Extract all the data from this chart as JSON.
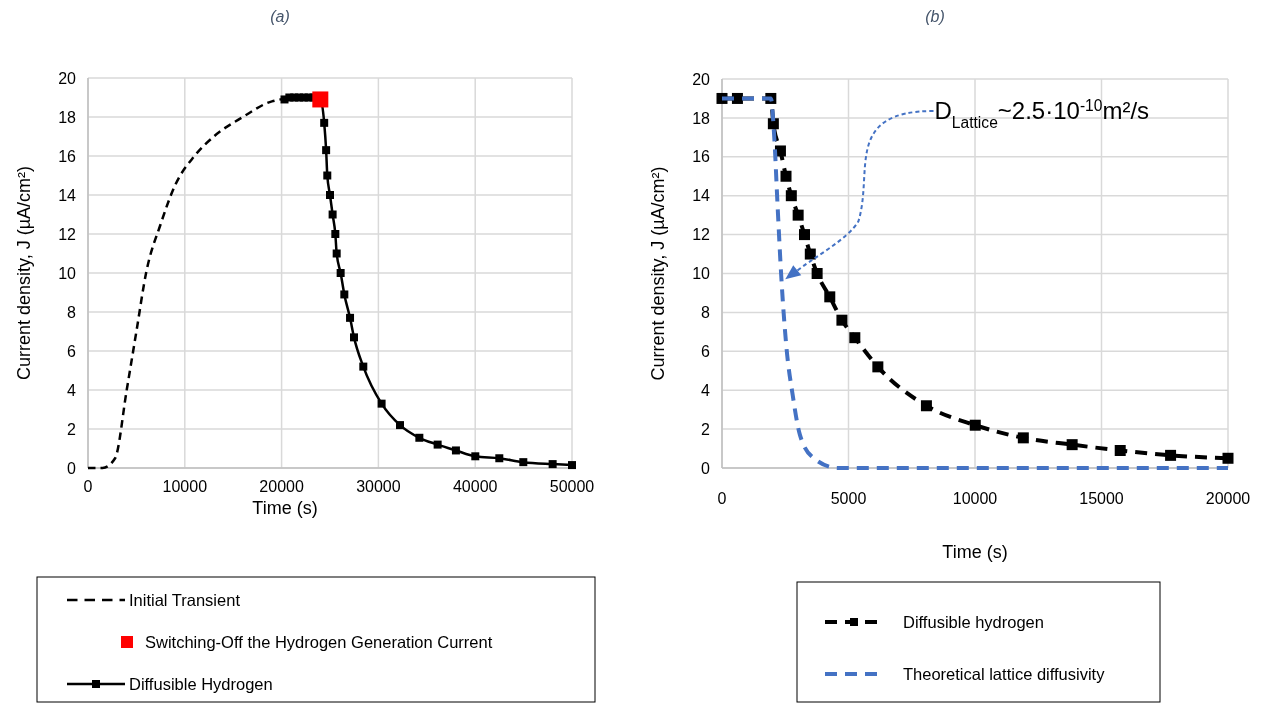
{
  "chart_data": [
    {
      "type": "line",
      "title": "(a)",
      "xlabel": "Time (s)",
      "ylabel": "Current density, J (µA/cm²)",
      "xlim": [
        0,
        50000
      ],
      "ylim": [
        0,
        20
      ],
      "xticks": [
        0,
        10000,
        20000,
        30000,
        40000,
        50000
      ],
      "yticks": [
        0,
        2,
        4,
        6,
        8,
        10,
        12,
        14,
        16,
        18,
        20
      ],
      "grid": true,
      "legend": "bottom",
      "series": [
        {
          "name": "Initial Transient",
          "color": "#000000",
          "line_style": "dashed",
          "marker": "none",
          "x": [
            0,
            1500,
            2800,
            4000,
            5000,
            6000,
            7500,
            9000,
            11000,
            13000,
            16000,
            19000,
            22000,
            24000
          ],
          "values": [
            0,
            0,
            0.5,
            4,
            7,
            10,
            12.5,
            14.5,
            16,
            17,
            18,
            18.8,
            19,
            19
          ]
        },
        {
          "name": "Switching-Off the Hydrogen Generation Current",
          "type": "scatter",
          "color": "#ff0000",
          "marker": "square",
          "x": [
            24000
          ],
          "values": [
            18.9
          ]
        },
        {
          "name": "Diffusible Hydrogen",
          "color": "#000000",
          "line_style": "solid",
          "marker": "square",
          "x": [
            20300,
            20800,
            21300,
            21800,
            22300,
            22800,
            23300,
            24000,
            24400,
            24600,
            24720,
            25000,
            25270,
            25550,
            25690,
            26100,
            26480,
            27070,
            27480,
            28440,
            30330,
            32230,
            34230,
            36120,
            38010,
            40010,
            42490,
            44970,
            48000,
            50000
          ],
          "values": [
            18.9,
            19,
            19,
            19,
            19,
            19,
            19,
            18.9,
            17.7,
            16.3,
            15,
            14,
            13,
            12,
            11,
            10,
            8.9,
            7.7,
            6.7,
            5.2,
            3.3,
            2.2,
            1.55,
            1.2,
            0.9,
            0.6,
            0.5,
            0.3,
            0.2,
            0.15
          ]
        }
      ]
    },
    {
      "type": "line",
      "title": "(b)",
      "xlabel": "Time (s)",
      "ylabel": "Current density, J (µA/cm²)",
      "xlim": [
        0,
        20000
      ],
      "ylim": [
        0,
        20
      ],
      "xticks": [
        0,
        5000,
        10000,
        15000,
        20000
      ],
      "yticks": [
        0,
        2,
        4,
        6,
        8,
        10,
        12,
        14,
        16,
        18,
        20
      ],
      "grid": true,
      "legend": "bottom",
      "annotations": [
        "D$_{Lattice}$~2.5·10$^{-10}$m²/s"
      ],
      "series": [
        {
          "name": "Diffusible hydrogen",
          "color": "#000000",
          "line_style": "dashed",
          "marker": "square",
          "x": [
            0,
            610,
            1930,
            2030,
            2310,
            2530,
            2740,
            3010,
            3260,
            3490,
            3760,
            4260,
            4740,
            5250,
            6160,
            8080,
            10010,
            11910,
            13840,
            15740,
            17730,
            20000
          ],
          "values": [
            19,
            19,
            19,
            17.7,
            16.3,
            15,
            14,
            13,
            12,
            11,
            10,
            8.8,
            7.6,
            6.7,
            5.2,
            3.2,
            2.2,
            1.55,
            1.2,
            0.9,
            0.65,
            0.5
          ]
        },
        {
          "name": "Theoretical lattice diffusivity",
          "color": "#4472c4",
          "line_style": "dashed",
          "marker": "none",
          "x": [
            0,
            1000,
            1930,
            2070,
            2200,
            2340,
            2540,
            2800,
            3080,
            3630,
            4580,
            6000,
            10000,
            15000,
            20000
          ],
          "values": [
            19,
            19,
            19,
            16.9,
            13.4,
            9.9,
            6.3,
            3.7,
            1.7,
            0.5,
            0,
            0,
            0,
            0,
            0
          ]
        }
      ]
    }
  ]
}
